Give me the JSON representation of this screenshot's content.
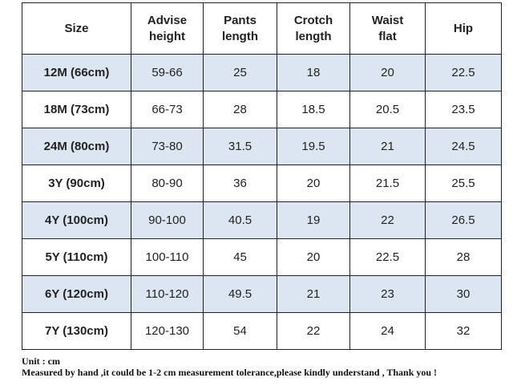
{
  "table": {
    "header": [
      "Size",
      "Advise height",
      "Pants length",
      "Crotch length",
      "Waist flat",
      "Hip"
    ],
    "rows": [
      [
        "12M (66cm)",
        "59-66",
        25,
        18,
        20,
        22.5
      ],
      [
        "18M (73cm)",
        "66-73",
        28,
        18.5,
        20.5,
        23.5
      ],
      [
        "24M (80cm)",
        "73-80",
        31.5,
        19.5,
        21,
        24.5
      ],
      [
        "3Y (90cm)",
        "80-90",
        36,
        20,
        21.5,
        25.5
      ],
      [
        "4Y (100cm)",
        "90-100",
        40.5,
        19,
        22,
        26.5
      ],
      [
        "5Y (110cm)",
        "100-110",
        45,
        20,
        22.5,
        28
      ],
      [
        "6Y (120cm)",
        "110-120",
        49.5,
        21,
        23,
        30
      ],
      [
        "7Y (130cm)",
        "120-130",
        54,
        22,
        24,
        32
      ]
    ]
  },
  "notes": [
    "Unit : cm",
    "Measured by hand ,it could be 1-2 cm measurement tolerance,please kindly understand , Thank you !"
  ]
}
